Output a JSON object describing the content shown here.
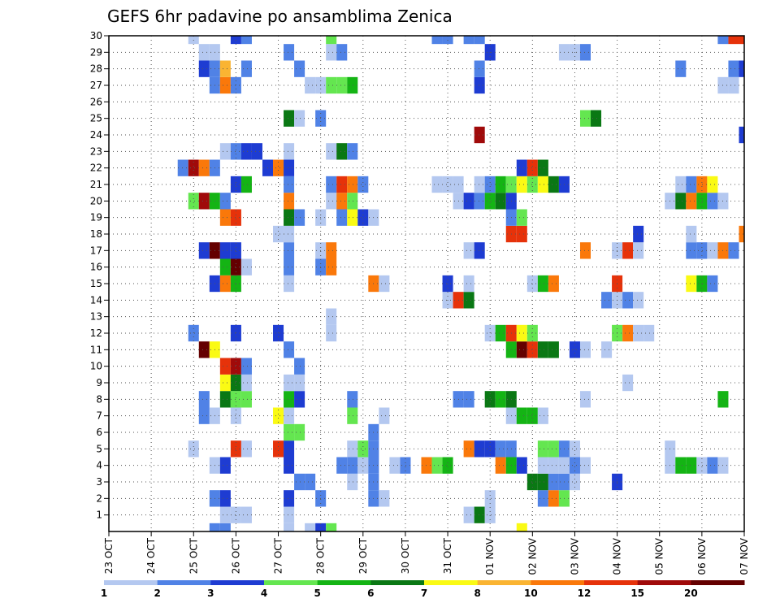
{
  "chart_data": {
    "type": "heatmap",
    "title": "GEFS 6hr padavine po ansamblima Zenica",
    "xlabel": "",
    "ylabel": "",
    "x_ticks": [
      "23 OCT",
      "24 OCT",
      "25 OCT",
      "26 OCT",
      "27 OCT",
      "28 OCT",
      "29 OCT",
      "30 OCT",
      "31 OCT",
      "01 NOV",
      "02 NOV",
      "03 NOV",
      "04 NOV",
      "05 NOV",
      "06 NOV",
      "07 NOV"
    ],
    "y_ticks": [
      1,
      2,
      3,
      4,
      5,
      6,
      7,
      8,
      9,
      10,
      11,
      12,
      13,
      14,
      15,
      16,
      17,
      18,
      19,
      20,
      21,
      22,
      23,
      24,
      25,
      26,
      27,
      28,
      29,
      30
    ],
    "x_range_steps": [
      0,
      60
    ],
    "y_range": [
      0,
      30
    ],
    "grid": true,
    "colorbar": {
      "levels": [
        "1",
        "2",
        "3",
        "4",
        "5",
        "6",
        "7",
        "8",
        "10",
        "12",
        "15",
        "20"
      ],
      "colors": [
        "#b4c8f0",
        "#5082e6",
        "#1e3cd2",
        "#64e650",
        "#14b414",
        "#0a7814",
        "#fafa14",
        "#fab432",
        "#fa780a",
        "#e6320a",
        "#a00a0a",
        "#640000"
      ]
    },
    "cells_note": "member -> list of [time_step, color_class]; time_step counted in 6-hour steps from 23 OCT 00Z",
    "cells": {
      "30": [
        [
          8,
          0
        ],
        [
          12,
          2
        ],
        [
          13,
          1
        ],
        [
          21,
          3
        ],
        [
          31,
          1
        ],
        [
          32,
          1
        ],
        [
          34,
          1
        ],
        [
          35,
          1
        ],
        [
          58,
          1
        ],
        [
          59,
          9
        ],
        [
          60,
          9
        ]
      ],
      "29": [
        [
          9,
          0
        ],
        [
          10,
          0
        ],
        [
          17,
          1
        ],
        [
          21,
          0
        ],
        [
          22,
          1
        ],
        [
          36,
          2
        ],
        [
          43,
          0
        ],
        [
          44,
          0
        ],
        [
          45,
          1
        ]
      ],
      "28": [
        [
          9,
          2
        ],
        [
          10,
          1
        ],
        [
          11,
          7
        ],
        [
          13,
          1
        ],
        [
          18,
          1
        ],
        [
          35,
          1
        ],
        [
          54,
          1
        ],
        [
          59,
          1
        ],
        [
          60,
          2
        ]
      ],
      "27": [
        [
          10,
          1
        ],
        [
          11,
          8
        ],
        [
          12,
          1
        ],
        [
          19,
          0
        ],
        [
          20,
          0
        ],
        [
          21,
          3
        ],
        [
          22,
          3
        ],
        [
          23,
          4
        ],
        [
          35,
          2
        ],
        [
          58,
          0
        ],
        [
          59,
          0
        ]
      ],
      "25": [
        [
          17,
          5
        ],
        [
          18,
          0
        ],
        [
          20,
          1
        ],
        [
          45,
          3
        ],
        [
          46,
          5
        ]
      ],
      "24": [
        [
          35,
          10
        ],
        [
          60,
          2
        ]
      ],
      "23": [
        [
          11,
          0
        ],
        [
          12,
          1
        ],
        [
          13,
          2
        ],
        [
          14,
          2
        ],
        [
          17,
          0
        ],
        [
          21,
          0
        ],
        [
          22,
          5
        ],
        [
          23,
          1
        ]
      ],
      "22": [
        [
          7,
          1
        ],
        [
          8,
          10
        ],
        [
          9,
          8
        ],
        [
          10,
          1
        ],
        [
          15,
          2
        ],
        [
          16,
          8
        ],
        [
          17,
          2
        ],
        [
          39,
          2
        ],
        [
          40,
          9
        ],
        [
          41,
          5
        ]
      ],
      "21": [
        [
          12,
          2
        ],
        [
          13,
          4
        ],
        [
          17,
          1
        ],
        [
          21,
          1
        ],
        [
          22,
          9
        ],
        [
          23,
          8
        ],
        [
          24,
          1
        ],
        [
          31,
          0
        ],
        [
          32,
          0
        ],
        [
          33,
          0
        ],
        [
          35,
          0
        ],
        [
          36,
          1
        ],
        [
          37,
          4
        ],
        [
          38,
          3
        ],
        [
          39,
          6
        ],
        [
          40,
          3
        ],
        [
          41,
          6
        ],
        [
          42,
          5
        ],
        [
          43,
          2
        ],
        [
          54,
          0
        ],
        [
          55,
          1
        ],
        [
          56,
          8
        ],
        [
          57,
          6
        ]
      ],
      "20": [
        [
          8,
          3
        ],
        [
          9,
          10
        ],
        [
          10,
          4
        ],
        [
          11,
          1
        ],
        [
          17,
          8
        ],
        [
          21,
          0
        ],
        [
          22,
          8
        ],
        [
          23,
          3
        ],
        [
          33,
          0
        ],
        [
          34,
          2
        ],
        [
          35,
          1
        ],
        [
          36,
          4
        ],
        [
          37,
          5
        ],
        [
          38,
          2
        ],
        [
          53,
          0
        ],
        [
          54,
          5
        ],
        [
          55,
          8
        ],
        [
          56,
          4
        ],
        [
          57,
          1
        ],
        [
          58,
          0
        ]
      ],
      "19": [
        [
          11,
          8
        ],
        [
          12,
          9
        ],
        [
          17,
          5
        ],
        [
          18,
          1
        ],
        [
          20,
          0
        ],
        [
          22,
          1
        ],
        [
          23,
          6
        ],
        [
          24,
          2
        ],
        [
          25,
          0
        ],
        [
          38,
          1
        ],
        [
          39,
          3
        ]
      ],
      "18": [
        [
          16,
          0
        ],
        [
          17,
          0
        ],
        [
          38,
          9
        ],
        [
          39,
          9
        ],
        [
          50,
          2
        ],
        [
          55,
          0
        ],
        [
          60,
          8
        ]
      ],
      "17": [
        [
          9,
          2
        ],
        [
          10,
          11
        ],
        [
          11,
          2
        ],
        [
          12,
          2
        ],
        [
          17,
          1
        ],
        [
          20,
          0
        ],
        [
          21,
          8
        ],
        [
          34,
          0
        ],
        [
          35,
          2
        ],
        [
          45,
          8
        ],
        [
          48,
          0
        ],
        [
          49,
          9
        ],
        [
          50,
          0
        ],
        [
          55,
          1
        ],
        [
          56,
          1
        ],
        [
          57,
          0
        ],
        [
          58,
          8
        ],
        [
          59,
          1
        ]
      ],
      "16": [
        [
          11,
          4
        ],
        [
          12,
          11
        ],
        [
          13,
          0
        ],
        [
          17,
          1
        ],
        [
          20,
          1
        ],
        [
          21,
          8
        ]
      ],
      "15": [
        [
          10,
          2
        ],
        [
          11,
          8
        ],
        [
          12,
          4
        ],
        [
          17,
          0
        ],
        [
          25,
          8
        ],
        [
          26,
          0
        ],
        [
          32,
          2
        ],
        [
          34,
          0
        ],
        [
          40,
          0
        ],
        [
          41,
          4
        ],
        [
          42,
          8
        ],
        [
          48,
          9
        ],
        [
          55,
          6
        ],
        [
          56,
          4
        ],
        [
          57,
          1
        ]
      ],
      "14": [
        [
          32,
          0
        ],
        [
          33,
          9
        ],
        [
          34,
          5
        ],
        [
          47,
          1
        ],
        [
          48,
          0
        ],
        [
          49,
          1
        ],
        [
          50,
          0
        ]
      ],
      "13": [
        [
          21,
          0
        ]
      ],
      "12": [
        [
          8,
          1
        ],
        [
          12,
          2
        ],
        [
          16,
          2
        ],
        [
          21,
          0
        ],
        [
          36,
          0
        ],
        [
          37,
          4
        ],
        [
          38,
          9
        ],
        [
          39,
          6
        ],
        [
          40,
          3
        ],
        [
          48,
          3
        ],
        [
          49,
          8
        ],
        [
          50,
          0
        ],
        [
          51,
          0
        ]
      ],
      "11": [
        [
          9,
          11
        ],
        [
          10,
          6
        ],
        [
          17,
          1
        ],
        [
          38,
          4
        ],
        [
          39,
          11
        ],
        [
          40,
          9
        ],
        [
          41,
          5
        ],
        [
          42,
          5
        ],
        [
          44,
          2
        ],
        [
          45,
          0
        ],
        [
          47,
          0
        ]
      ],
      "10": [
        [
          11,
          9
        ],
        [
          12,
          10
        ],
        [
          13,
          1
        ],
        [
          18,
          1
        ]
      ],
      "9": [
        [
          11,
          6
        ],
        [
          12,
          5
        ],
        [
          13,
          0
        ],
        [
          17,
          0
        ],
        [
          18,
          0
        ],
        [
          49,
          0
        ]
      ],
      "8": [
        [
          9,
          1
        ],
        [
          11,
          5
        ],
        [
          12,
          3
        ],
        [
          13,
          3
        ],
        [
          17,
          4
        ],
        [
          18,
          2
        ],
        [
          23,
          1
        ],
        [
          33,
          1
        ],
        [
          34,
          1
        ],
        [
          36,
          5
        ],
        [
          37,
          4
        ],
        [
          38,
          5
        ],
        [
          45,
          0
        ],
        [
          58,
          4
        ]
      ],
      "7": [
        [
          9,
          1
        ],
        [
          10,
          0
        ],
        [
          12,
          0
        ],
        [
          16,
          6
        ],
        [
          17,
          0
        ],
        [
          23,
          3
        ],
        [
          26,
          0
        ],
        [
          38,
          0
        ],
        [
          39,
          4
        ],
        [
          40,
          4
        ],
        [
          41,
          0
        ]
      ],
      "6": [
        [
          17,
          3
        ],
        [
          18,
          3
        ],
        [
          25,
          1
        ]
      ],
      "5": [
        [
          8,
          0
        ],
        [
          12,
          9
        ],
        [
          13,
          0
        ],
        [
          16,
          9
        ],
        [
          17,
          2
        ],
        [
          23,
          0
        ],
        [
          24,
          3
        ],
        [
          25,
          1
        ],
        [
          34,
          8
        ],
        [
          35,
          2
        ],
        [
          36,
          2
        ],
        [
          37,
          1
        ],
        [
          38,
          1
        ],
        [
          41,
          3
        ],
        [
          42,
          3
        ],
        [
          43,
          1
        ],
        [
          44,
          0
        ],
        [
          53,
          0
        ]
      ],
      "4": [
        [
          10,
          0
        ],
        [
          11,
          2
        ],
        [
          17,
          2
        ],
        [
          22,
          1
        ],
        [
          23,
          1
        ],
        [
          24,
          0
        ],
        [
          25,
          1
        ],
        [
          27,
          0
        ],
        [
          28,
          1
        ],
        [
          30,
          8
        ],
        [
          31,
          3
        ],
        [
          32,
          4
        ],
        [
          37,
          8
        ],
        [
          38,
          4
        ],
        [
          39,
          2
        ],
        [
          41,
          0
        ],
        [
          42,
          0
        ],
        [
          43,
          0
        ],
        [
          44,
          1
        ],
        [
          45,
          0
        ],
        [
          53,
          0
        ],
        [
          54,
          4
        ],
        [
          55,
          4
        ],
        [
          56,
          0
        ],
        [
          57,
          1
        ],
        [
          58,
          0
        ]
      ],
      "3": [
        [
          18,
          1
        ],
        [
          19,
          1
        ],
        [
          23,
          0
        ],
        [
          25,
          1
        ],
        [
          40,
          5
        ],
        [
          41,
          5
        ],
        [
          42,
          1
        ],
        [
          43,
          1
        ],
        [
          44,
          0
        ],
        [
          48,
          2
        ]
      ],
      "2": [
        [
          10,
          1
        ],
        [
          11,
          2
        ],
        [
          17,
          2
        ],
        [
          20,
          1
        ],
        [
          25,
          1
        ],
        [
          26,
          0
        ],
        [
          36,
          0
        ],
        [
          41,
          1
        ],
        [
          42,
          8
        ],
        [
          43,
          3
        ]
      ],
      "1": [
        [
          11,
          0
        ],
        [
          12,
          0
        ],
        [
          13,
          0
        ],
        [
          17,
          0
        ],
        [
          34,
          0
        ],
        [
          35,
          5
        ],
        [
          36,
          0
        ]
      ],
      "0": [
        [
          10,
          1
        ],
        [
          11,
          1
        ],
        [
          17,
          0
        ],
        [
          19,
          0
        ],
        [
          20,
          2
        ],
        [
          21,
          3
        ],
        [
          39,
          6
        ]
      ]
    }
  }
}
